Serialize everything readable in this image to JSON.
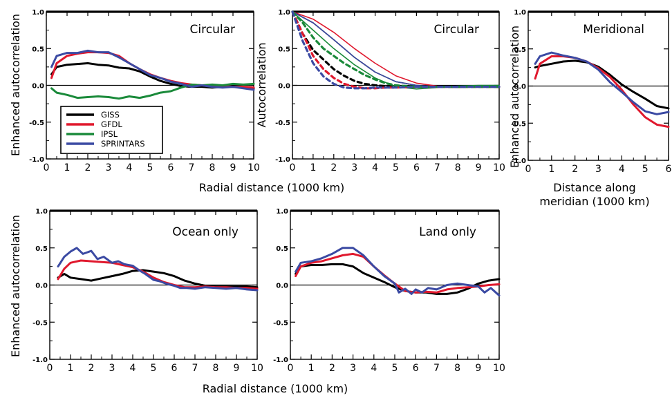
{
  "colors": {
    "GISS": "#000000",
    "GFDL": "#e0182d",
    "IPSL": "#1a8a3a",
    "SPRINTARS": "#3b4aa3"
  },
  "labels": {
    "enhanced": "Enhanced autocorrelation",
    "autocorr": "Autocorrelation",
    "radial": "Radial distance (1000 km)",
    "meridian_1": "Distance along",
    "meridian_2": "meridian (1000 km)"
  },
  "legend": [
    "GISS",
    "GFDL",
    "IPSL",
    "SPRINTARS"
  ],
  "chart_data": [
    {
      "type": "line",
      "title": "Circular",
      "ylabel": "Enhanced autocorrelation",
      "xlabel": "Radial distance (1000 km)",
      "xlim": [
        0,
        10
      ],
      "ylim": [
        -1,
        1
      ],
      "xticks": [
        "0",
        "1",
        "2",
        "3",
        "4",
        "5",
        "6",
        "7",
        "8",
        "9",
        "10"
      ],
      "yticks": [
        "-1.0",
        "-0.5",
        "0.0",
        "0.5",
        "1.0"
      ],
      "legend": "left",
      "series": [
        {
          "name": "GISS",
          "style": "solid",
          "x": [
            0.25,
            0.5,
            1,
            1.5,
            2,
            2.5,
            3,
            3.5,
            4,
            4.5,
            5,
            5.5,
            6,
            6.5,
            7,
            7.5,
            8,
            8.5,
            9,
            9.5,
            10
          ],
          "y": [
            0.15,
            0.25,
            0.28,
            0.29,
            0.3,
            0.28,
            0.27,
            0.24,
            0.23,
            0.19,
            0.12,
            0.06,
            0.02,
            -0.01,
            -0.02,
            -0.02,
            -0.03,
            -0.02,
            -0.02,
            -0.03,
            -0.04
          ]
        },
        {
          "name": "GFDL",
          "style": "solid",
          "x": [
            0.25,
            0.5,
            1,
            1.5,
            2,
            2.5,
            3,
            3.5,
            4,
            4.5,
            5,
            5.5,
            6,
            6.5,
            7,
            7.5,
            8,
            8.5,
            9,
            9.5,
            10
          ],
          "y": [
            0.1,
            0.3,
            0.4,
            0.43,
            0.45,
            0.45,
            0.44,
            0.4,
            0.3,
            0.22,
            0.15,
            0.1,
            0.06,
            0.03,
            0.01,
            0,
            -0.01,
            -0.01,
            -0.02,
            -0.02,
            -0.03
          ]
        },
        {
          "name": "IPSL",
          "style": "solid",
          "x": [
            0.25,
            0.5,
            1,
            1.5,
            2,
            2.5,
            3,
            3.5,
            4,
            4.5,
            5,
            5.5,
            6,
            6.5,
            7,
            7.5,
            8,
            8.5,
            9,
            9.5,
            10
          ],
          "y": [
            -0.04,
            -0.1,
            -0.13,
            -0.17,
            -0.16,
            -0.15,
            -0.16,
            -0.18,
            -0.15,
            -0.17,
            -0.14,
            -0.1,
            -0.08,
            -0.03,
            0.01,
            0,
            0.01,
            0,
            0.02,
            0.01,
            0.02
          ]
        },
        {
          "name": "SPRINTARS",
          "style": "solid",
          "x": [
            0.25,
            0.5,
            1,
            1.5,
            2,
            2.5,
            3,
            3.5,
            4,
            4.5,
            5,
            5.5,
            6,
            6.5,
            7,
            7.5,
            8,
            8.5,
            9,
            9.5,
            10
          ],
          "y": [
            0.25,
            0.4,
            0.44,
            0.44,
            0.47,
            0.45,
            0.45,
            0.38,
            0.3,
            0.22,
            0.14,
            0.1,
            0.05,
            0.02,
            -0.02,
            0,
            -0.02,
            -0.03,
            -0.02,
            -0.04,
            -0.06
          ]
        }
      ]
    },
    {
      "type": "line",
      "title": "Circular",
      "ylabel": "Autocorrelation",
      "xlim": [
        0,
        10
      ],
      "ylim": [
        -1,
        1
      ],
      "xticks": [
        "0",
        "1",
        "2",
        "3",
        "4",
        "5",
        "6",
        "7",
        "8",
        "9",
        "10"
      ],
      "yticks": [
        "-1.0",
        "-0.5",
        "0.0",
        "0.5",
        "1.0"
      ],
      "series": [
        {
          "name": "GISS",
          "style": "solid",
          "x": [
            0,
            1,
            2,
            3,
            4,
            5,
            6,
            7,
            8,
            9,
            10
          ],
          "y": [
            1,
            0.85,
            0.62,
            0.38,
            0.18,
            0.05,
            0,
            -0.02,
            -0.03,
            -0.02,
            -0.02
          ]
        },
        {
          "name": "GFDL",
          "style": "solid",
          "x": [
            0,
            1,
            2,
            3,
            4,
            5,
            6,
            7,
            8,
            9,
            10
          ],
          "y": [
            1,
            0.9,
            0.72,
            0.5,
            0.3,
            0.13,
            0.03,
            -0.01,
            -0.02,
            -0.02,
            -0.02
          ]
        },
        {
          "name": "IPSL",
          "style": "solid",
          "x": [
            0,
            1,
            2,
            3,
            4,
            5,
            6,
            7,
            8,
            9,
            10
          ],
          "y": [
            1,
            0.75,
            0.5,
            0.28,
            0.1,
            -0.02,
            -0.05,
            -0.03,
            -0.01,
            0,
            0
          ]
        },
        {
          "name": "SPRINTARS",
          "style": "solid",
          "x": [
            0,
            1,
            2,
            3,
            4,
            5,
            6,
            7,
            8,
            9,
            10
          ],
          "y": [
            1,
            0.85,
            0.62,
            0.38,
            0.18,
            0.05,
            0,
            -0.02,
            -0.03,
            -0.02,
            -0.03
          ]
        },
        {
          "name": "GISS",
          "style": "dashed",
          "x": [
            0,
            0.5,
            1,
            1.5,
            2,
            2.5,
            3,
            3.5,
            4,
            4.5,
            5,
            6,
            7,
            8,
            9,
            10
          ],
          "y": [
            1,
            0.7,
            0.48,
            0.35,
            0.22,
            0.13,
            0.06,
            0.02,
            0,
            -0.01,
            -0.02,
            -0.02,
            -0.02,
            -0.02,
            -0.02,
            -0.02
          ]
        },
        {
          "name": "GFDL",
          "style": "dashed",
          "x": [
            0,
            0.5,
            1,
            1.5,
            2,
            2.5,
            3,
            3.5,
            4,
            4.5,
            5,
            6,
            7,
            8,
            9,
            10
          ],
          "y": [
            1,
            0.7,
            0.4,
            0.22,
            0.1,
            0.02,
            -0.02,
            -0.04,
            -0.04,
            -0.03,
            -0.03,
            -0.02,
            -0.02,
            -0.02,
            -0.02,
            -0.02
          ]
        },
        {
          "name": "IPSL",
          "style": "dashed",
          "x": [
            0,
            0.5,
            1,
            1.5,
            2,
            2.5,
            3,
            3.5,
            4,
            4.5,
            5,
            6,
            7,
            8,
            9,
            10
          ],
          "y": [
            1,
            0.85,
            0.65,
            0.5,
            0.4,
            0.3,
            0.22,
            0.14,
            0.08,
            0.03,
            0,
            -0.02,
            -0.02,
            -0.02,
            -0.02,
            -0.02
          ]
        },
        {
          "name": "SPRINTARS",
          "style": "dashed",
          "x": [
            0,
            0.5,
            1,
            1.5,
            2,
            2.5,
            3,
            3.5,
            4,
            4.5,
            5,
            6,
            7,
            8,
            9,
            10
          ],
          "y": [
            1,
            0.6,
            0.3,
            0.12,
            0.02,
            -0.03,
            -0.04,
            -0.04,
            -0.03,
            -0.03,
            -0.03,
            -0.02,
            -0.02,
            -0.02,
            -0.02,
            -0.02
          ]
        }
      ]
    },
    {
      "type": "line",
      "title": "Meridional",
      "ylabel": "Enhanced autocorrelation",
      "xlabel": "Distance along meridian (1000 km)",
      "xlim": [
        0,
        6
      ],
      "ylim": [
        -1,
        1
      ],
      "xticks": [
        "0",
        "1",
        "2",
        "3",
        "4",
        "5",
        "6"
      ],
      "yticks": [
        "-1.0",
        "-0.5",
        "0.0",
        "0.5",
        "1.0"
      ],
      "series": [
        {
          "name": "GISS",
          "style": "solid",
          "x": [
            0.3,
            0.5,
            1,
            1.5,
            2,
            2.5,
            3,
            3.5,
            4,
            4.5,
            5,
            5.5,
            6
          ],
          "y": [
            0.25,
            0.27,
            0.3,
            0.33,
            0.34,
            0.32,
            0.26,
            0.15,
            0.02,
            -0.08,
            -0.17,
            -0.27,
            -0.3
          ]
        },
        {
          "name": "GFDL",
          "style": "solid",
          "x": [
            0.3,
            0.5,
            1,
            1.5,
            2,
            2.5,
            3,
            3.5,
            4,
            4.5,
            5,
            5.5,
            6
          ],
          "y": [
            0.1,
            0.3,
            0.4,
            0.4,
            0.38,
            0.33,
            0.24,
            0.12,
            -0.05,
            -0.25,
            -0.42,
            -0.52,
            -0.55
          ]
        },
        {
          "name": "SPRINTARS",
          "style": "solid",
          "x": [
            0.3,
            0.5,
            1,
            1.5,
            2,
            2.5,
            3,
            3.5,
            4,
            4.5,
            5,
            5.5,
            6
          ],
          "y": [
            0.3,
            0.4,
            0.45,
            0.41,
            0.38,
            0.33,
            0.22,
            0.05,
            -0.08,
            -0.22,
            -0.34,
            -0.38,
            -0.35
          ]
        }
      ]
    },
    {
      "type": "line",
      "title": "Ocean only",
      "ylabel": "Enhanced autocorrelation",
      "xlabel": "Radial distance (1000 km)",
      "xlim": [
        0,
        10
      ],
      "ylim": [
        -1,
        1
      ],
      "xticks": [
        "0",
        "1",
        "2",
        "3",
        "4",
        "5",
        "6",
        "7",
        "8",
        "9",
        "10"
      ],
      "yticks": [
        "-1.0",
        "-0.5",
        "0.0",
        "0.5",
        "1.0"
      ],
      "series": [
        {
          "name": "GISS",
          "style": "solid",
          "x": [
            0.4,
            0.7,
            1,
            1.5,
            2,
            2.5,
            3,
            3.5,
            4,
            4.5,
            5,
            5.5,
            6,
            6.5,
            7,
            7.5,
            8,
            8.5,
            9,
            9.5,
            10
          ],
          "y": [
            0.1,
            0.15,
            0.1,
            0.08,
            0.06,
            0.09,
            0.12,
            0.15,
            0.19,
            0.2,
            0.18,
            0.16,
            0.12,
            0.06,
            0.02,
            -0.01,
            -0.02,
            -0.02,
            -0.02,
            -0.02,
            -0.03
          ]
        },
        {
          "name": "GFDL",
          "style": "solid",
          "x": [
            0.4,
            0.7,
            1,
            1.5,
            2,
            2.5,
            3,
            3.5,
            4,
            4.5,
            5,
            5.5,
            6,
            6.5,
            7,
            7.5,
            8,
            8.5,
            9,
            9.5,
            10
          ],
          "y": [
            0.08,
            0.22,
            0.3,
            0.33,
            0.32,
            0.31,
            0.3,
            0.27,
            0.24,
            0.18,
            0.1,
            0.04,
            0,
            -0.03,
            -0.03,
            -0.02,
            -0.03,
            -0.03,
            -0.04,
            -0.04,
            -0.05
          ]
        },
        {
          "name": "SPRINTARS",
          "style": "solid",
          "x": [
            0.4,
            0.7,
            1,
            1.3,
            1.6,
            2,
            2.3,
            2.6,
            3,
            3.3,
            3.6,
            4,
            4.3,
            4.6,
            5,
            5.3,
            5.6,
            6,
            6.3,
            6.6,
            7,
            7.5,
            8,
            8.5,
            9,
            9.5,
            10
          ],
          "y": [
            0.25,
            0.38,
            0.45,
            0.5,
            0.42,
            0.46,
            0.35,
            0.38,
            0.3,
            0.32,
            0.28,
            0.26,
            0.2,
            0.15,
            0.07,
            0.05,
            0.02,
            -0.01,
            -0.04,
            -0.04,
            -0.05,
            -0.03,
            -0.04,
            -0.05,
            -0.04,
            -0.06,
            -0.07
          ]
        }
      ]
    },
    {
      "type": "line",
      "title": "Land only",
      "xlim": [
        0,
        10
      ],
      "ylim": [
        -1,
        1
      ],
      "xticks": [
        "0",
        "1",
        "2",
        "3",
        "4",
        "5",
        "6",
        "7",
        "8",
        "9",
        "10"
      ],
      "yticks": [
        "-1.0",
        "-0.5",
        "0.0",
        "0.5",
        "1.0"
      ],
      "series": [
        {
          "name": "GISS",
          "style": "solid",
          "x": [
            0.25,
            0.5,
            1,
            1.5,
            2,
            2.5,
            3,
            3.5,
            4,
            4.5,
            5,
            5.5,
            6,
            6.5,
            7,
            7.5,
            8,
            8.5,
            9,
            9.5,
            10
          ],
          "y": [
            0.15,
            0.25,
            0.27,
            0.27,
            0.28,
            0.28,
            0.25,
            0.16,
            0.1,
            0.04,
            -0.03,
            -0.08,
            -0.1,
            -0.1,
            -0.12,
            -0.12,
            -0.1,
            -0.05,
            0.02,
            0.06,
            0.08
          ]
        },
        {
          "name": "GFDL",
          "style": "solid",
          "x": [
            0.25,
            0.5,
            1,
            1.5,
            2,
            2.5,
            3,
            3.5,
            4,
            4.5,
            5,
            5.5,
            6,
            6.5,
            7,
            7.5,
            8,
            8.5,
            9,
            9.5,
            10
          ],
          "y": [
            0.12,
            0.25,
            0.3,
            0.32,
            0.36,
            0.4,
            0.42,
            0.38,
            0.25,
            0.13,
            0.02,
            -0.08,
            -0.1,
            -0.09,
            -0.1,
            -0.06,
            -0.04,
            -0.03,
            -0.02,
            0,
            0.01
          ]
        },
        {
          "name": "SPRINTARS",
          "style": "solid",
          "x": [
            0.25,
            0.5,
            1,
            1.5,
            2,
            2.5,
            3,
            3.5,
            4,
            4.5,
            5,
            5.2,
            5.5,
            5.8,
            6,
            6.3,
            6.6,
            7,
            7.5,
            8,
            8.5,
            9,
            9.3,
            9.6,
            10
          ],
          "y": [
            0.18,
            0.3,
            0.32,
            0.36,
            0.42,
            0.5,
            0.5,
            0.4,
            0.25,
            0.12,
            0.02,
            -0.1,
            -0.05,
            -0.12,
            -0.06,
            -0.1,
            -0.04,
            -0.06,
            0,
            0.02,
            0,
            -0.02,
            -0.1,
            -0.04,
            -0.14
          ]
        }
      ]
    }
  ]
}
